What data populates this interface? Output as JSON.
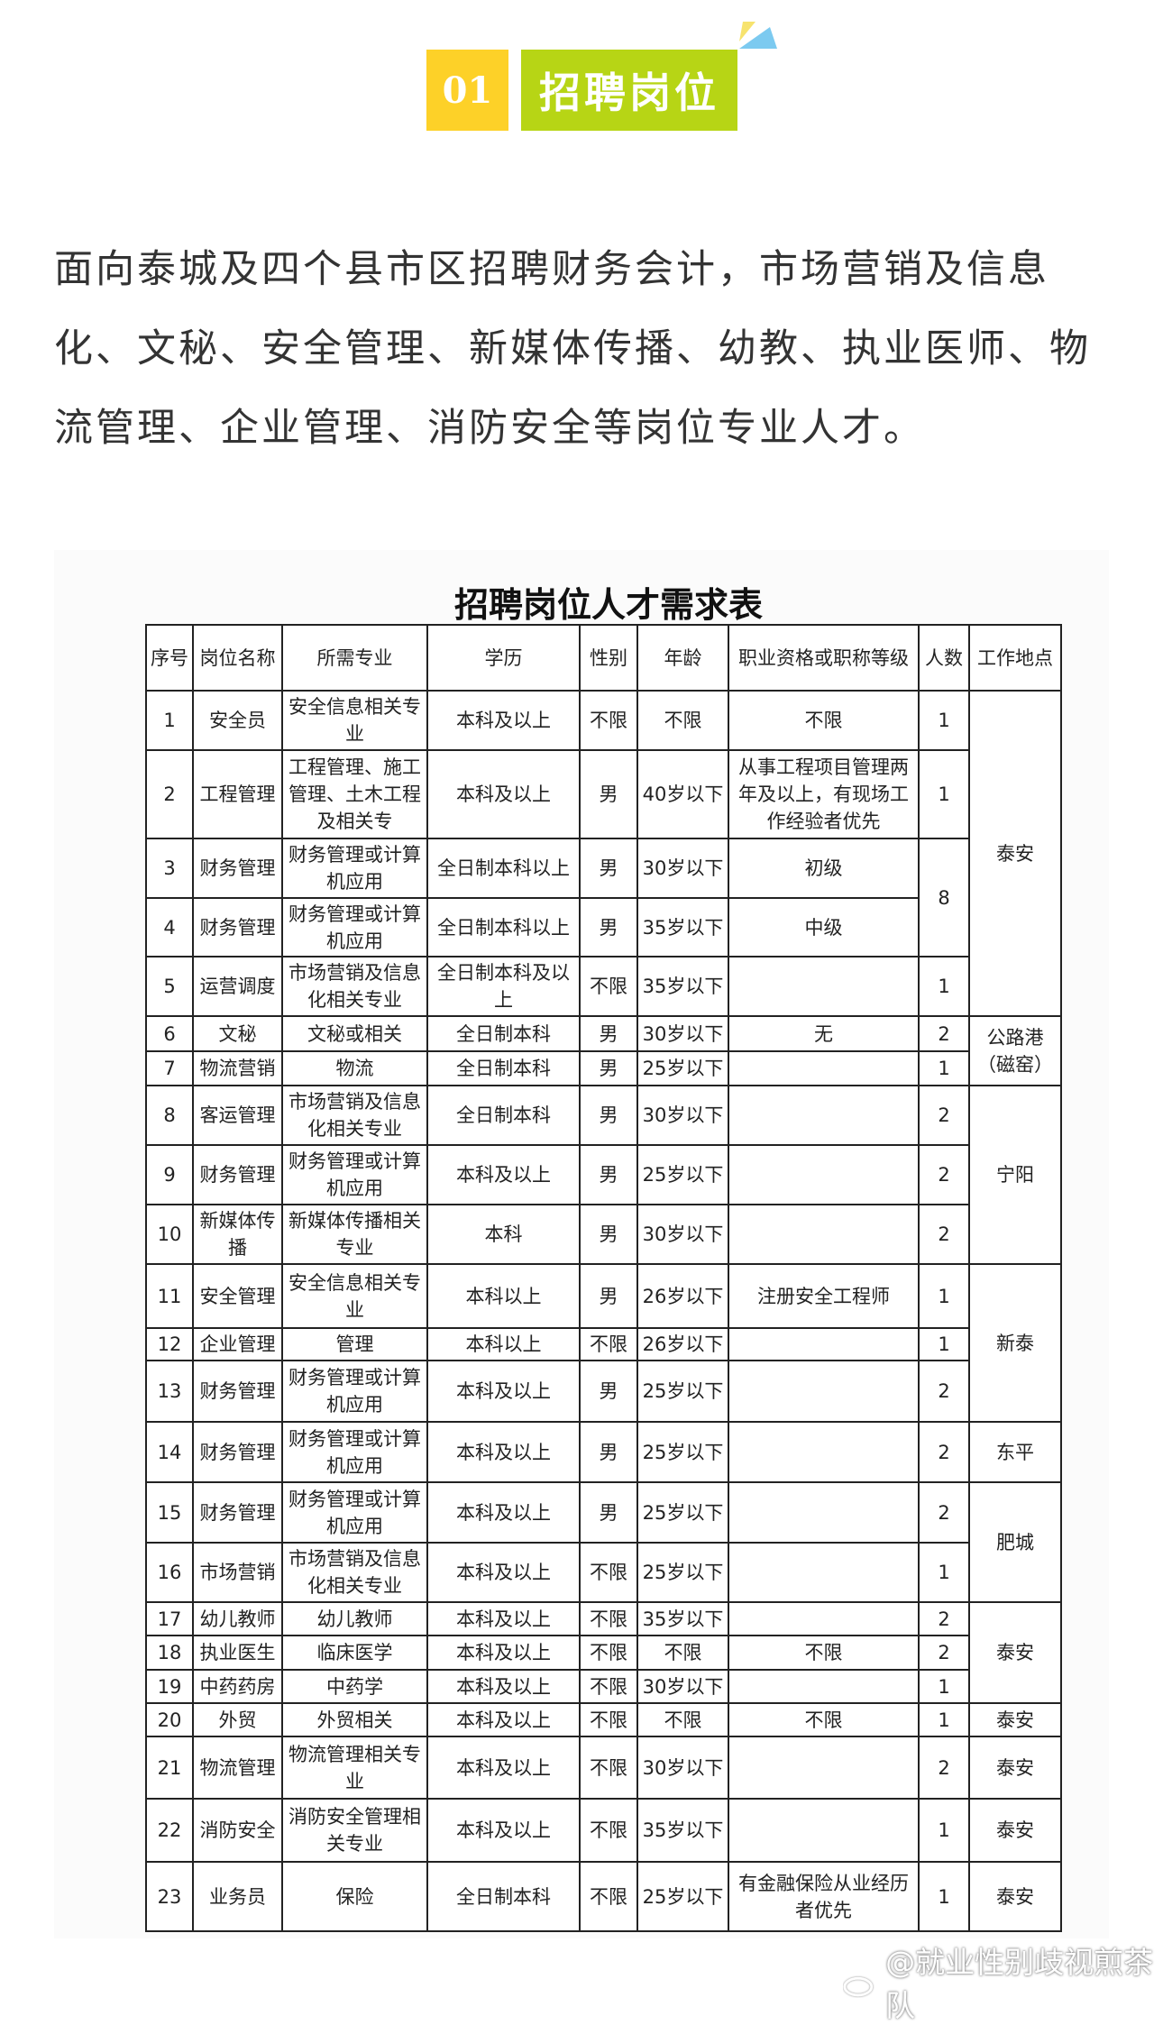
{
  "header": {
    "number": "01",
    "title": "招聘岗位",
    "colors": {
      "number_bg": "#fdd128",
      "title_bg": "#b7d515"
    }
  },
  "intro": "面向泰城及四个县市区招聘财务会计，市场营销及信息化、文秘、安全管理、新媒体传播、幼教、执业医师、物流管理、企业管理、消防安全等岗位专业人才。",
  "table": {
    "title": "招聘岗位人才需求表",
    "columns": [
      "序号",
      "岗位名称",
      "所需专业",
      "学历",
      "性别",
      "年龄",
      "职业资格或职称等级",
      "人数",
      "工作地点"
    ],
    "rows": [
      {
        "no": "1",
        "post": "安全员",
        "major": "安全信息相关专业",
        "edu": "本科及以上",
        "gender": "不限",
        "age": "不限",
        "qual": "不限",
        "count": "1",
        "location": "泰安",
        "location_rows": 5
      },
      {
        "no": "2",
        "post": "工程管理",
        "major": "工程管理、施工管理、土木工程及相关专",
        "edu": "本科及以上",
        "gender": "男",
        "age": "40岁以下",
        "qual": "从事工程项目管理两年及以上，有现场工作经验者优先",
        "count": "1"
      },
      {
        "no": "3",
        "post": "财务管理",
        "major": "财务管理或计算机应用",
        "edu": "全日制本科以上",
        "gender": "男",
        "age": "30岁以下",
        "qual": "初级",
        "count": "8",
        "count_rows": 2
      },
      {
        "no": "4",
        "post": "财务管理",
        "major": "财务管理或计算机应用",
        "edu": "全日制本科以上",
        "gender": "男",
        "age": "35岁以下",
        "qual": "中级"
      },
      {
        "no": "5",
        "post": "运营调度",
        "major": "市场营销及信息化相关专业",
        "edu": "全日制本科及以上",
        "gender": "不限",
        "age": "35岁以下",
        "qual": "",
        "count": "1"
      },
      {
        "no": "6",
        "post": "文秘",
        "major": "文秘或相关",
        "edu": "全日制本科",
        "gender": "男",
        "age": "30岁以下",
        "qual": "无",
        "count": "2",
        "location": "公路港（磁窑）",
        "location_rows": 2
      },
      {
        "no": "7",
        "post": "物流营销",
        "major": "物流",
        "edu": "全日制本科",
        "gender": "男",
        "age": "25岁以下",
        "qual": "",
        "count": "1"
      },
      {
        "no": "8",
        "post": "客运管理",
        "major": "市场营销及信息化相关专业",
        "edu": "全日制本科",
        "gender": "男",
        "age": "30岁以下",
        "qual": "",
        "count": "2",
        "location": "宁阳",
        "location_rows": 3
      },
      {
        "no": "9",
        "post": "财务管理",
        "major": "财务管理或计算机应用",
        "edu": "本科及以上",
        "gender": "男",
        "age": "25岁以下",
        "qual": "",
        "count": "2"
      },
      {
        "no": "10",
        "post": "新媒体传播",
        "major": "新媒体传播相关专业",
        "edu": "本科",
        "gender": "男",
        "age": "30岁以下",
        "qual": "",
        "count": "2"
      },
      {
        "no": "11",
        "post": "安全管理",
        "major": "安全信息相关专业",
        "edu": "本科以上",
        "gender": "男",
        "age": "26岁以下",
        "qual": "注册安全工程师",
        "count": "1",
        "location": "新泰",
        "location_rows": 3
      },
      {
        "no": "12",
        "post": "企业管理",
        "major": "管理",
        "edu": "本科以上",
        "gender": "不限",
        "age": "26岁以下",
        "qual": "",
        "count": "1"
      },
      {
        "no": "13",
        "post": "财务管理",
        "major": "财务管理或计算机应用",
        "edu": "本科及以上",
        "gender": "男",
        "age": "25岁以下",
        "qual": "",
        "count": "2"
      },
      {
        "no": "14",
        "post": "财务管理",
        "major": "财务管理或计算机应用",
        "edu": "本科及以上",
        "gender": "男",
        "age": "25岁以下",
        "qual": "",
        "count": "2",
        "location": "东平",
        "location_rows": 1
      },
      {
        "no": "15",
        "post": "财务管理",
        "major": "财务管理或计算机应用",
        "edu": "本科及以上",
        "gender": "男",
        "age": "25岁以下",
        "qual": "",
        "count": "2",
        "location": "肥城",
        "location_rows": 2
      },
      {
        "no": "16",
        "post": "市场营销",
        "major": "市场营销及信息化相关专业",
        "edu": "本科及以上",
        "gender": "不限",
        "age": "25岁以下",
        "qual": "",
        "count": "1"
      },
      {
        "no": "17",
        "post": "幼儿教师",
        "major": "幼儿教师",
        "edu": "本科及以上",
        "gender": "不限",
        "age": "35岁以下",
        "qual": "",
        "count": "2",
        "location": "泰安",
        "location_rows": 3
      },
      {
        "no": "18",
        "post": "执业医生",
        "major": "临床医学",
        "edu": "本科及以上",
        "gender": "不限",
        "age": "不限",
        "qual": "不限",
        "count": "2"
      },
      {
        "no": "19",
        "post": "中药药房",
        "major": "中药学",
        "edu": "本科及以上",
        "gender": "不限",
        "age": "30岁以下",
        "qual": "",
        "count": "1"
      },
      {
        "no": "20",
        "post": "外贸",
        "major": "外贸相关",
        "edu": "本科及以上",
        "gender": "不限",
        "age": "不限",
        "qual": "不限",
        "count": "1",
        "location": "泰安",
        "location_rows": 1
      },
      {
        "no": "21",
        "post": "物流管理",
        "major": "物流管理相关专业",
        "edu": "本科及以上",
        "gender": "不限",
        "age": "30岁以下",
        "qual": "",
        "count": "2",
        "location": "泰安",
        "location_rows": 1
      },
      {
        "no": "22",
        "post": "消防安全",
        "major": "消防安全管理相关专业",
        "edu": "本科及以上",
        "gender": "不限",
        "age": "35岁以下",
        "qual": "",
        "count": "1",
        "location": "泰安",
        "location_rows": 1
      },
      {
        "no": "23",
        "post": "业务员",
        "major": "保险",
        "edu": "全日制本科",
        "gender": "不限",
        "age": "25岁以下",
        "qual": "有金融保险从业经历者优先",
        "count": "1",
        "location": "泰安",
        "location_rows": 1
      }
    ]
  },
  "watermark": {
    "icon": "weibo-icon",
    "text": "@就业性别歧视煎茶队"
  }
}
